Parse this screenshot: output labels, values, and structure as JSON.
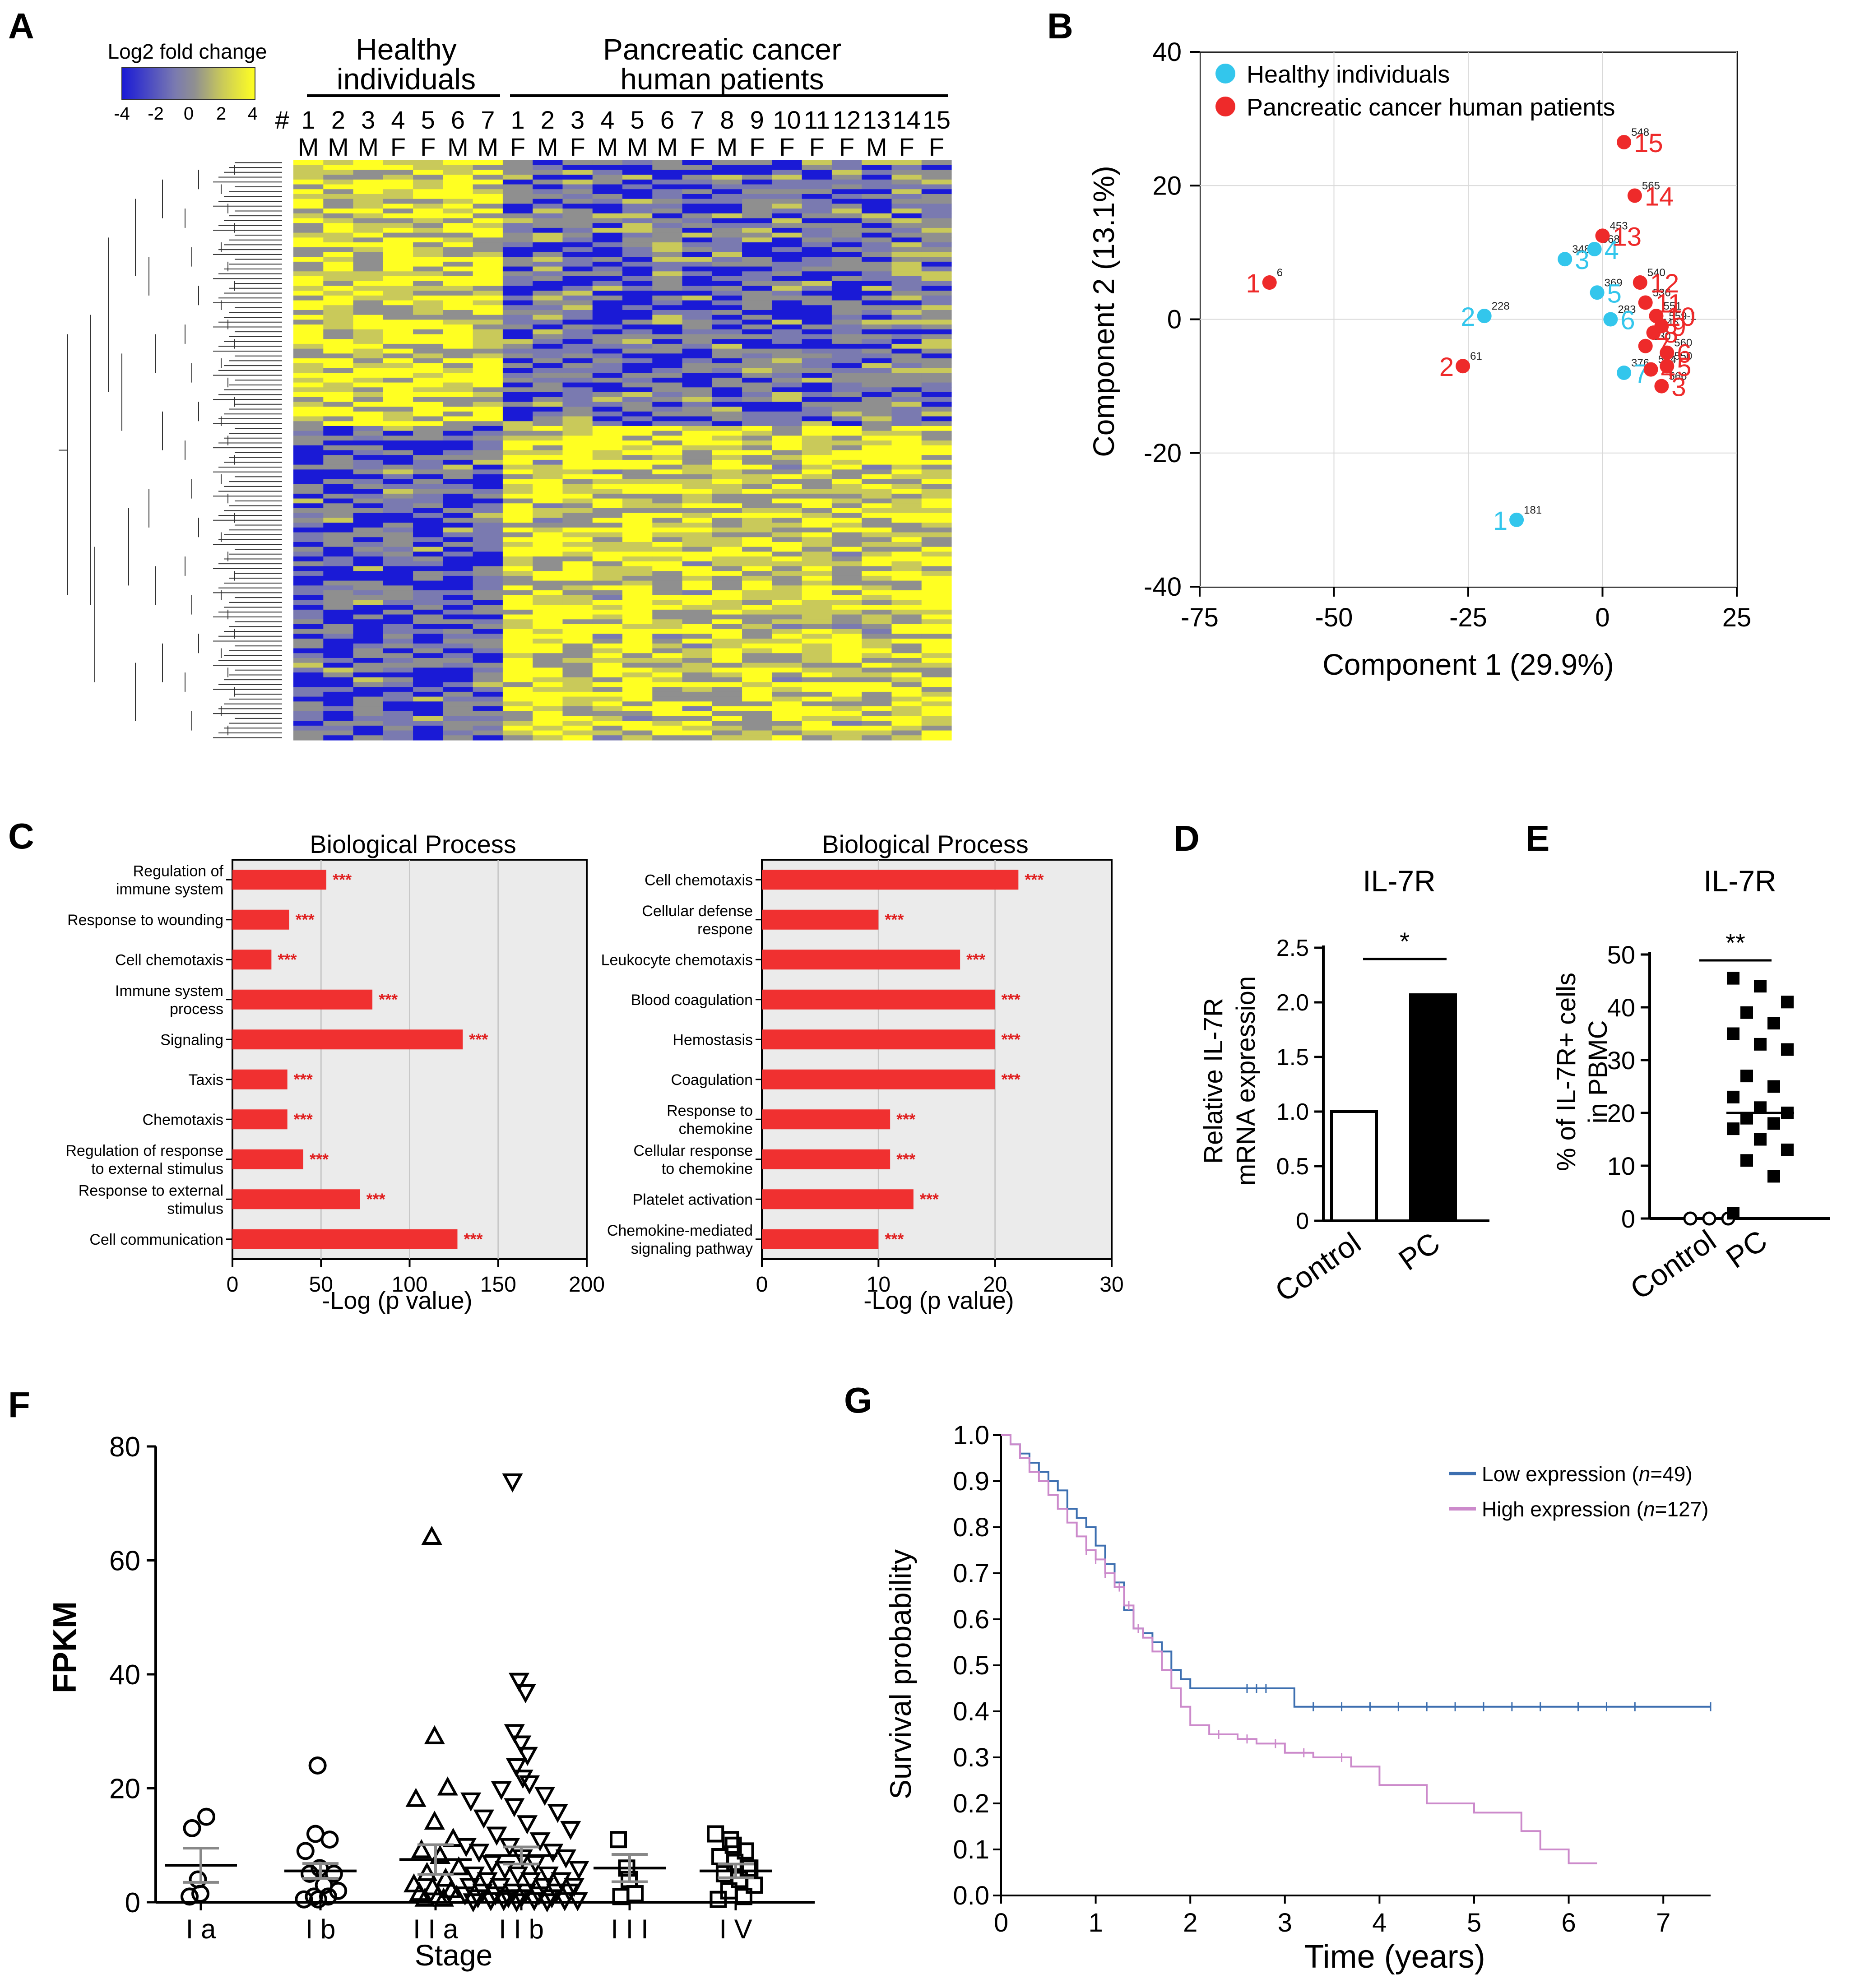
{
  "figure": {
    "panel_letters": [
      "A",
      "B",
      "C",
      "D",
      "E",
      "F",
      "G"
    ]
  },
  "chart_data": [
    {
      "panel": "A",
      "type": "heatmap",
      "legend_title": "Log2 fold change",
      "legend_ticks": [
        "-4",
        "-2",
        "0",
        "2",
        "4"
      ],
      "colorscale": [
        "#1a1ad6",
        "#7a7ab0",
        "#8f8f8f",
        "#c9c95a",
        "#ffff22"
      ],
      "hash_label": "#",
      "groups": [
        {
          "name_line1": "Healthy",
          "name_line2": "individuals",
          "count": 7
        },
        {
          "name_line1": "Pancreatic cancer",
          "name_line2": "human patients",
          "count": 15
        }
      ],
      "columns": [
        {
          "id": "1",
          "sex": "M"
        },
        {
          "id": "2",
          "sex": "M"
        },
        {
          "id": "3",
          "sex": "M"
        },
        {
          "id": "4",
          "sex": "F"
        },
        {
          "id": "5",
          "sex": "F"
        },
        {
          "id": "6",
          "sex": "M"
        },
        {
          "id": "7",
          "sex": "M"
        },
        {
          "id": "1",
          "sex": "F"
        },
        {
          "id": "2",
          "sex": "M"
        },
        {
          "id": "3",
          "sex": "F"
        },
        {
          "id": "4",
          "sex": "M"
        },
        {
          "id": "5",
          "sex": "M"
        },
        {
          "id": "6",
          "sex": "M"
        },
        {
          "id": "7",
          "sex": "F"
        },
        {
          "id": "8",
          "sex": "M"
        },
        {
          "id": "9",
          "sex": "F"
        },
        {
          "id": "10",
          "sex": "F"
        },
        {
          "id": "11",
          "sex": "F"
        },
        {
          "id": "12",
          "sex": "F"
        },
        {
          "id": "13",
          "sex": "M"
        },
        {
          "id": "14",
          "sex": "F"
        },
        {
          "id": "15",
          "sex": "F"
        }
      ]
    },
    {
      "panel": "B",
      "type": "scatter",
      "xlabel": "Component 1 (29.9%)",
      "ylabel": "Component 2 (13.1%)",
      "xlim": [
        -75,
        25
      ],
      "ylim": [
        -40,
        40
      ],
      "xticks": [
        -75,
        -50,
        -25,
        0,
        25
      ],
      "yticks": [
        40,
        20,
        0,
        -20,
        -40
      ],
      "grid": true,
      "legend_position": "top-left",
      "series": [
        {
          "name": "Healthy individuals",
          "color": "#33c6ec",
          "points": [
            {
              "label": "1",
              "id": "181",
              "x": -16,
              "y": -30
            },
            {
              "label": "2",
              "id": "228",
              "x": -22,
              "y": 0.5
            },
            {
              "label": "3",
              "id": "348",
              "x": -7,
              "y": 9
            },
            {
              "label": "4",
              "id": "368",
              "x": -1.5,
              "y": 10.5
            },
            {
              "label": "5",
              "id": "369",
              "x": -1,
              "y": 4
            },
            {
              "label": "6",
              "id": "283",
              "x": 1.5,
              "y": 0
            },
            {
              "label": "7",
              "id": "376",
              "x": 4,
              "y": -8
            }
          ]
        },
        {
          "name": "Pancreatic cancer human patients",
          "color": "#ee2a2a",
          "points": [
            {
              "label": "1",
              "id": "6",
              "x": -62,
              "y": 5.5
            },
            {
              "label": "2",
              "id": "61",
              "x": -26,
              "y": -7
            },
            {
              "label": "3",
              "id": "566",
              "x": 11,
              "y": -10
            },
            {
              "label": "4",
              "id": "534",
              "x": 9,
              "y": -7.5
            },
            {
              "label": "5",
              "id": "550",
              "x": 12,
              "y": -7
            },
            {
              "label": "6",
              "id": "560",
              "x": 12,
              "y": -5
            },
            {
              "label": "7",
              "id": "530",
              "x": 8,
              "y": -4
            },
            {
              "label": "8",
              "id": "546",
              "x": 9.5,
              "y": -2
            },
            {
              "label": "9",
              "id": "559-1",
              "x": 11,
              "y": -1
            },
            {
              "label": "10",
              "id": "551",
              "x": 10,
              "y": 0.5
            },
            {
              "label": "11",
              "id": "536",
              "x": 8,
              "y": 2.5
            },
            {
              "label": "12",
              "id": "540",
              "x": 7,
              "y": 5.5
            },
            {
              "label": "13",
              "id": "453",
              "x": 0,
              "y": 12.5
            },
            {
              "label": "14",
              "id": "565",
              "x": 6,
              "y": 18.5
            },
            {
              "label": "15",
              "id": "548",
              "x": 4,
              "y": 26.5
            }
          ]
        }
      ]
    },
    {
      "panel": "C-left",
      "type": "bar",
      "title": "Biological Process",
      "xlabel": "-Log (p value)",
      "xlim": [
        0,
        200
      ],
      "xticks": [
        0,
        50,
        100,
        150,
        200
      ],
      "significance": "***",
      "categories": [
        [
          "Regulation of",
          "immune system"
        ],
        [
          "Response to wounding"
        ],
        [
          "Cell chemotaxis"
        ],
        [
          "Immune system",
          "process"
        ],
        [
          "Signaling"
        ],
        [
          "Taxis"
        ],
        [
          "Chemotaxis"
        ],
        [
          "Regulation of response",
          "to external stimulus"
        ],
        [
          "Response to external",
          "stimulus"
        ],
        [
          "Cell communication"
        ]
      ],
      "values": [
        53,
        32,
        22,
        79,
        130,
        31,
        31,
        40,
        72,
        127
      ]
    },
    {
      "panel": "C-right",
      "type": "bar",
      "title": "Biological Process",
      "xlabel": "-Log (p value)",
      "xlim": [
        0,
        30
      ],
      "xticks": [
        0,
        10,
        20,
        30
      ],
      "significance": "***",
      "categories": [
        [
          "Cell chemotaxis"
        ],
        [
          "Cellular defense",
          "respone"
        ],
        [
          "Leukocyte chemotaxis"
        ],
        [
          "Blood coagulation"
        ],
        [
          "Hemostasis"
        ],
        [
          "Coagulation"
        ],
        [
          "Response to",
          "chemokine"
        ],
        [
          "Cellular response",
          "to chemokine"
        ],
        [
          "Platelet activation"
        ],
        [
          "Chemokine-mediated",
          "signaling pathway"
        ]
      ],
      "values": [
        22,
        10,
        17,
        20,
        20,
        20,
        11,
        11,
        13,
        10
      ]
    },
    {
      "panel": "D",
      "type": "bar",
      "title": "IL-7R",
      "ylabel_line1": "Relative IL-7R",
      "ylabel_line2": "mRNA expression",
      "ylim": [
        0,
        2.5
      ],
      "yticks": [
        "0",
        "0.5",
        "1.0",
        "1.5",
        "2.0",
        "2.5"
      ],
      "categories": [
        "Control",
        "PC"
      ],
      "values": [
        1.0,
        2.07
      ],
      "significance": "*"
    },
    {
      "panel": "E",
      "type": "scatter",
      "title": "IL-7R",
      "ylabel_line1": "% of IL-7R+ cells",
      "ylabel_line2": "in PBMC",
      "ylim": [
        0,
        50
      ],
      "yticks": [
        "0",
        "10",
        "20",
        "30",
        "40",
        "50"
      ],
      "categories": [
        "Control",
        "PC"
      ],
      "significance": "**",
      "control_values": [
        0,
        0,
        0
      ],
      "pc_values": [
        45.5,
        44,
        41,
        39,
        37,
        35,
        33,
        32,
        27,
        25,
        23,
        21,
        20,
        19,
        18,
        17,
        15,
        13,
        11,
        8,
        1
      ],
      "means": [
        0,
        20
      ]
    },
    {
      "panel": "F",
      "type": "scatter",
      "xlabel": "Stage",
      "ylabel": "FPKM",
      "ylim": [
        0,
        80
      ],
      "yticks": [
        "0",
        "20",
        "40",
        "60",
        "80"
      ],
      "categories": [
        "I a",
        "I b",
        "I I a",
        "I I b",
        "I I I",
        "I V"
      ],
      "means": [
        6.5,
        5.5,
        7.5,
        8.2,
        6,
        5.5
      ],
      "sems": [
        3,
        1.3,
        2.6,
        1.5,
        2.4,
        1.2
      ],
      "values": [
        [
          1,
          4,
          15,
          13,
          1.5
        ],
        [
          24,
          12,
          11,
          9,
          6,
          5,
          5,
          3,
          2,
          1,
          1,
          0.5,
          0.5
        ],
        [
          64,
          29,
          20,
          18,
          14,
          11,
          9,
          8,
          6,
          5,
          4,
          3,
          2.5,
          2,
          1.5,
          1,
          1,
          0.5,
          0.5
        ],
        [
          74,
          39,
          37,
          30,
          28,
          26,
          24,
          22,
          21,
          20,
          19,
          18,
          17,
          16,
          15,
          14,
          13,
          12,
          11,
          10,
          10,
          9,
          9,
          8,
          8,
          7,
          7,
          6,
          6,
          5,
          5,
          5,
          4,
          4,
          4,
          3,
          3,
          3,
          3,
          2,
          2,
          2,
          2,
          2,
          1.5,
          1.5,
          1.5,
          1,
          1,
          1,
          1,
          0.5,
          0.5,
          0.5,
          0.5,
          0.5,
          0.3,
          0.3,
          0.3
        ],
        [
          11,
          6,
          1.5,
          1,
          4
        ],
        [
          12,
          11,
          9,
          8,
          7,
          6,
          5,
          4,
          3,
          2,
          1,
          0.5,
          10,
          6
        ]
      ],
      "markers": [
        "circle",
        "circle",
        "triangle-up",
        "triangle-down",
        "square",
        "square"
      ]
    },
    {
      "panel": "G",
      "type": "line",
      "xlabel": "Time (years)",
      "ylabel": "Survival probability",
      "xlim": [
        0,
        7.5
      ],
      "ylim": [
        0,
        1.0
      ],
      "xticks": [
        "0",
        "1",
        "2",
        "3",
        "4",
        "5",
        "6",
        "7"
      ],
      "yticks": [
        "0.0",
        "0.1",
        "0.2",
        "0.3",
        "0.4",
        "0.5",
        "0.6",
        "0.7",
        "0.8",
        "0.9",
        "1.0"
      ],
      "legend_position": "top-right",
      "series": [
        {
          "name": "Low expression",
          "n_label": "n",
          "n_value": "=49)",
          "color": "#3d6fb0",
          "x": [
            0,
            0.1,
            0.2,
            0.3,
            0.4,
            0.5,
            0.6,
            0.7,
            0.8,
            0.9,
            1.0,
            1.1,
            1.2,
            1.3,
            1.4,
            1.5,
            1.6,
            1.7,
            1.8,
            1.9,
            2.0,
            2.5,
            3.0,
            3.1,
            3.5,
            4.0,
            5.0,
            6.0,
            7.5
          ],
          "y": [
            1.0,
            0.98,
            0.96,
            0.94,
            0.92,
            0.9,
            0.88,
            0.84,
            0.82,
            0.8,
            0.76,
            0.72,
            0.68,
            0.62,
            0.58,
            0.57,
            0.55,
            0.53,
            0.49,
            0.47,
            0.45,
            0.45,
            0.45,
            0.41,
            0.41,
            0.41,
            0.41,
            0.41,
            0.41
          ],
          "censor_x": [
            1.5,
            1.7,
            2.6,
            2.7,
            2.8,
            3.3,
            3.6,
            3.9,
            4.2,
            4.5,
            4.8,
            5.1,
            5.4,
            5.7,
            6.1,
            6.4,
            6.7,
            7.5
          ]
        },
        {
          "name": "High expression",
          "n_label": "n",
          "n_value": "=127)",
          "color": "#cc8acb",
          "x": [
            0,
            0.1,
            0.2,
            0.3,
            0.4,
            0.5,
            0.6,
            0.7,
            0.8,
            0.9,
            1.0,
            1.1,
            1.2,
            1.3,
            1.4,
            1.5,
            1.6,
            1.7,
            1.8,
            1.9,
            2.0,
            2.2,
            2.5,
            2.7,
            3.0,
            3.3,
            3.7,
            4.0,
            4.5,
            5.0,
            5.5,
            5.7,
            6.0,
            6.3
          ],
          "y": [
            1.0,
            0.98,
            0.95,
            0.92,
            0.9,
            0.87,
            0.84,
            0.81,
            0.78,
            0.75,
            0.73,
            0.7,
            0.67,
            0.63,
            0.58,
            0.56,
            0.53,
            0.49,
            0.45,
            0.41,
            0.37,
            0.35,
            0.34,
            0.33,
            0.31,
            0.3,
            0.28,
            0.24,
            0.2,
            0.18,
            0.14,
            0.1,
            0.07,
            0.07
          ],
          "censor_x": [
            0.9,
            1.0,
            1.1,
            1.25,
            1.35,
            1.45,
            2.3,
            2.6,
            2.9,
            3.2,
            3.6
          ]
        }
      ]
    }
  ]
}
